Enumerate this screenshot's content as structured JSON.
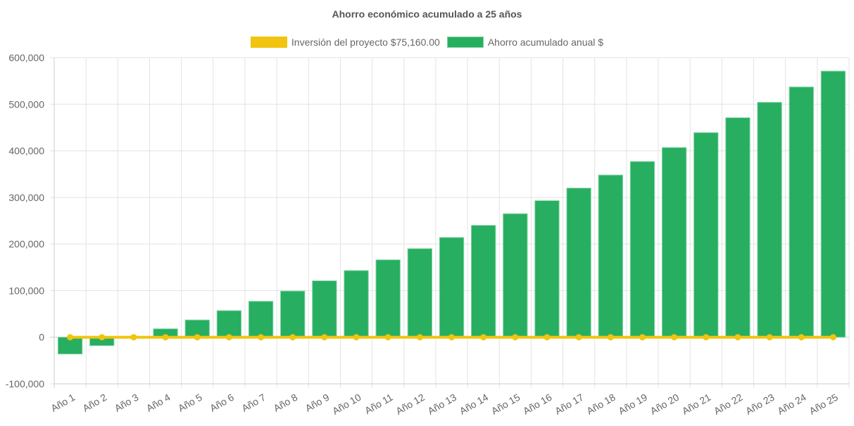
{
  "chart_data": {
    "type": "bar",
    "title": "Ahorro económico acumulado a 25 años",
    "categories": [
      "Año 1",
      "Año 2",
      "Año 3",
      "Año 4",
      "Año 5",
      "Año 6",
      "Año 7",
      "Año 8",
      "Año 9",
      "Año 10",
      "Año 11",
      "Año 12",
      "Año 13",
      "Año 14",
      "Año 15",
      "Año 16",
      "Año 17",
      "Año 18",
      "Año 19",
      "Año 20",
      "Año 21",
      "Año 22",
      "Año 23",
      "Año 24",
      "Año 25"
    ],
    "series": [
      {
        "name": "Inversión del proyecto $75,160.00",
        "type": "line",
        "color": "#f1c40f",
        "values": [
          0,
          0,
          0,
          0,
          0,
          0,
          0,
          0,
          0,
          0,
          0,
          0,
          0,
          0,
          0,
          0,
          0,
          0,
          0,
          0,
          0,
          0,
          0,
          0,
          0
        ]
      },
      {
        "name": "Ahorro acumulado anual $",
        "type": "bar",
        "color": "#27ae60",
        "values": [
          -36000,
          -18000,
          -1000,
          18000,
          37000,
          57000,
          77000,
          99000,
          121000,
          143000,
          166000,
          190000,
          214000,
          240000,
          265000,
          293000,
          320000,
          348000,
          377000,
          407000,
          439000,
          471000,
          504000,
          537000,
          571000
        ]
      }
    ],
    "ylim": [
      -100000,
      600000
    ],
    "yticks": [
      "600,000",
      "500,000",
      "400,000",
      "300,000",
      "200,000",
      "100,000",
      "0",
      "-100,000"
    ],
    "ytick_values": [
      600000,
      500000,
      400000,
      300000,
      200000,
      100000,
      0,
      -100000
    ],
    "grid": true,
    "legend": "top-center",
    "xlabel": "",
    "ylabel": ""
  }
}
